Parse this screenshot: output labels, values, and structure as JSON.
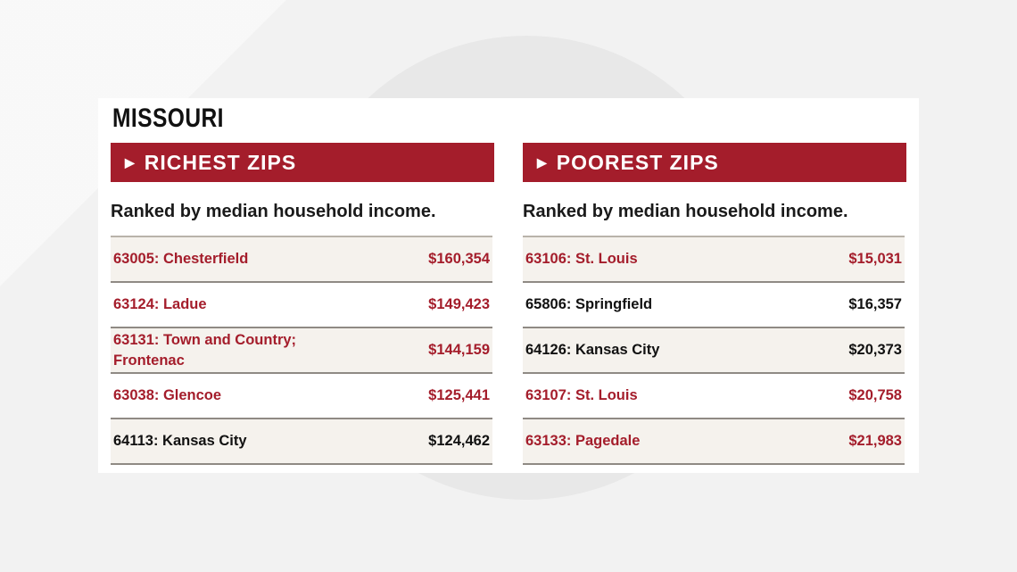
{
  "state": "MISSOURI",
  "colors": {
    "accent": "#a41d2b",
    "text_dark": "#111111",
    "row_shade": "#f5f2ed"
  },
  "richest": {
    "banner": "RICHEST ZIPS",
    "subtitle": "Ranked by median household income.",
    "rows": [
      {
        "name": "63005: Chesterfield",
        "value": "$160,354",
        "highlight": true
      },
      {
        "name": "63124: Ladue",
        "value": "$149,423",
        "highlight": true
      },
      {
        "name": "63131: Town and Country; Frontenac",
        "value": "$144,159",
        "highlight": true
      },
      {
        "name": "63038: Glencoe",
        "value": "$125,441",
        "highlight": true
      },
      {
        "name": "64113: Kansas City",
        "value": "$124,462",
        "highlight": false
      }
    ]
  },
  "poorest": {
    "banner": "POOREST ZIPS",
    "subtitle": "Ranked by median household income.",
    "rows": [
      {
        "name": "63106: St. Louis",
        "value": "$15,031",
        "highlight": true
      },
      {
        "name": "65806: Springfield",
        "value": "$16,357",
        "highlight": false
      },
      {
        "name": "64126: Kansas City",
        "value": "$20,373",
        "highlight": false
      },
      {
        "name": "63107: St. Louis",
        "value": "$20,758",
        "highlight": true
      },
      {
        "name": "63133: Pagedale",
        "value": "$21,983",
        "highlight": true
      }
    ]
  }
}
